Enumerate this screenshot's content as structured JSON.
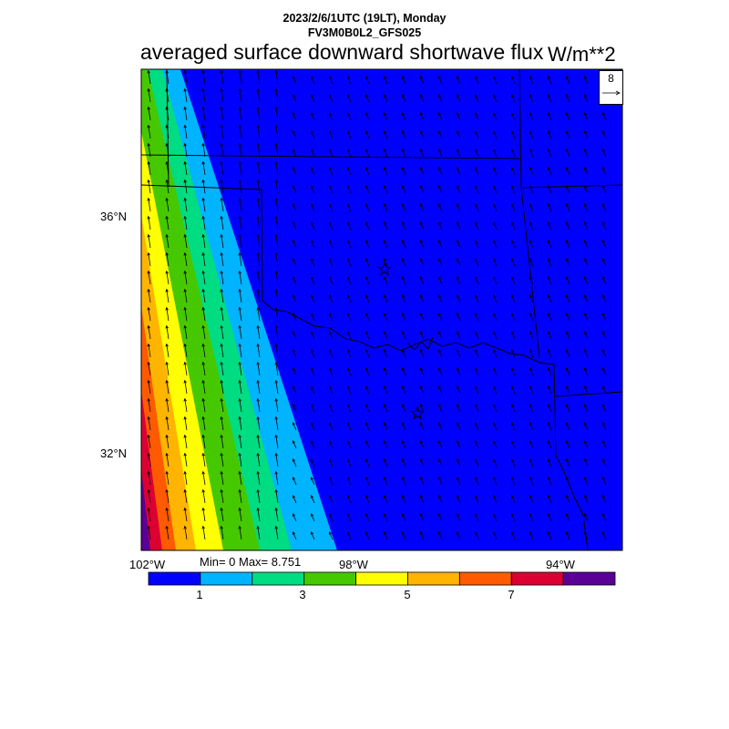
{
  "header": {
    "date_line": "2023/2/6/1UTC (19LT), Monday",
    "model_line": "FV3M0B0L2_GFS025"
  },
  "title": "averaged surface downward shortwave flux",
  "units": "W/m**2",
  "stats": "Min= 0 Max= 8.751",
  "reference_vector": {
    "label": "8"
  },
  "axes": {
    "lat_labels": [
      "36°N",
      "32°N"
    ],
    "lon_labels": [
      "102°W",
      "98°W",
      "94°W"
    ]
  },
  "colorbar": {
    "colors": [
      "#0000ff",
      "#00b4ff",
      "#00dc82",
      "#46c800",
      "#ffff00",
      "#ffb400",
      "#ff5a00",
      "#dc0032",
      "#5a0096"
    ],
    "tick_labels": [
      "1",
      "3",
      "5",
      "7"
    ]
  },
  "chart_data": {
    "type": "heatmap",
    "variable": "averaged surface downward shortwave flux",
    "units": "W/m**2",
    "min": 0,
    "max": 8.751,
    "levels": [
      0,
      1,
      2,
      3,
      4,
      5,
      6,
      7,
      8
    ],
    "lon_range": [
      -102.1,
      -93.1
    ],
    "lat_range": [
      30.3,
      38.6
    ],
    "stations": [
      "star",
      "star"
    ],
    "vector_field": "wind vectors, predominantly north-northwest"
  }
}
